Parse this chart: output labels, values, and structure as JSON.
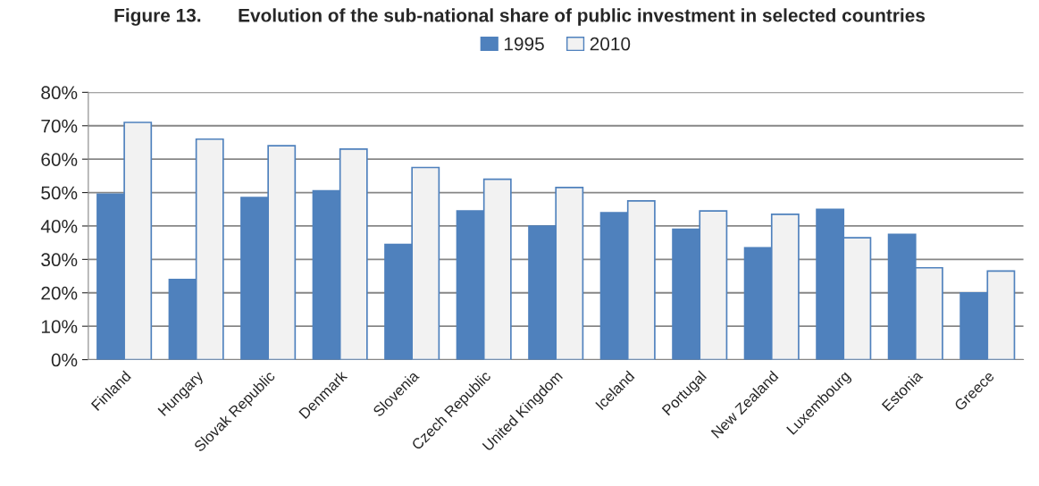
{
  "chart_data": {
    "type": "bar",
    "title": "Figure 13.       Evolution of the sub-national share of public investment in selected countries",
    "categories": [
      "Finland",
      "Hungary",
      "Slovak Republic",
      "Denmark",
      "Slovenia",
      "Czech Republic",
      "United Kingdom",
      "Iceland",
      "Portugal",
      "New Zealand",
      "Luxembourg",
      "Estonia",
      "Greece"
    ],
    "series": [
      {
        "name": "1995",
        "color": "#4f81bd",
        "values": [
          49.5,
          24,
          48.5,
          50.5,
          34.5,
          44.5,
          40,
          44,
          39,
          33.5,
          45,
          37.5,
          20
        ]
      },
      {
        "name": "2010",
        "color": "#f2f2f2",
        "values": [
          71,
          66,
          64,
          63,
          57.5,
          54,
          51.5,
          47.5,
          44.5,
          43.5,
          36.5,
          27.5,
          26.5
        ]
      }
    ],
    "ylim": [
      0,
      80
    ],
    "yticks": [
      {
        "value": 0,
        "label": "0%"
      },
      {
        "value": 10,
        "label": "10%"
      },
      {
        "value": 20,
        "label": "20%"
      },
      {
        "value": 30,
        "label": "30%"
      },
      {
        "value": 40,
        "label": "40%"
      },
      {
        "value": 50,
        "label": "50%"
      },
      {
        "value": 60,
        "label": "60%"
      },
      {
        "value": 70,
        "label": "70%"
      },
      {
        "value": 80,
        "label": "80%"
      }
    ],
    "grid": "y",
    "legend": "top"
  }
}
